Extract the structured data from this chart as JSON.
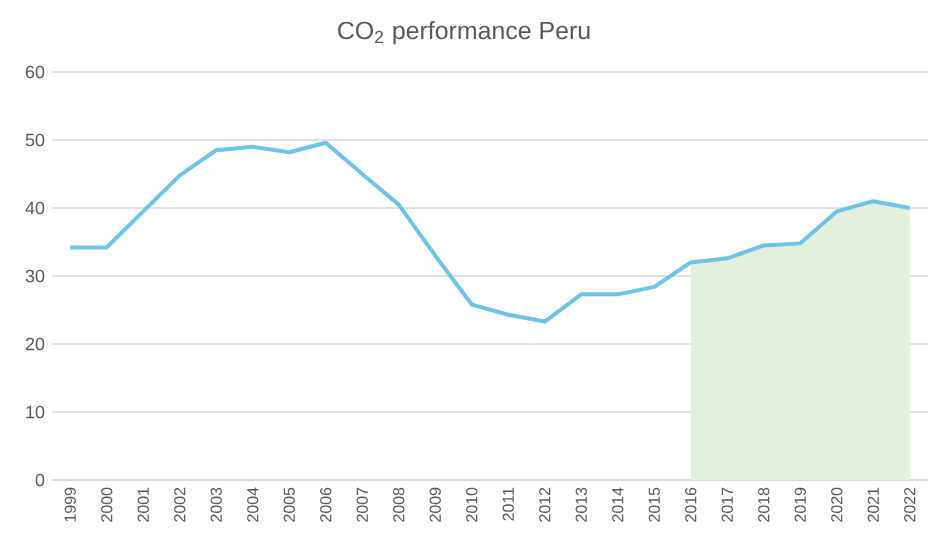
{
  "chart_data": {
    "type": "line",
    "title": "CO$_{2}$ performance Peru",
    "categories": [
      "1999",
      "2000",
      "2001",
      "2002",
      "2003",
      "2004",
      "2005",
      "2006",
      "2007",
      "2008",
      "2009",
      "2010",
      "2011",
      "2012",
      "2013",
      "2014",
      "2015",
      "2016",
      "2017",
      "2018",
      "2019",
      "2020",
      "2021",
      "2022"
    ],
    "series": [
      {
        "type": "area",
        "color": "#e2efda",
        "values": [
          null,
          null,
          null,
          null,
          null,
          null,
          null,
          null,
          null,
          null,
          null,
          null,
          null,
          null,
          null,
          null,
          null,
          32.0,
          32.6,
          34.5,
          34.8,
          39.5,
          41.0,
          40.0
        ]
      },
      {
        "color": "#6ec3e8",
        "values": [
          34.2,
          34.2,
          39.5,
          44.8,
          48.5,
          49.0,
          48.2,
          49.6,
          45.0,
          40.5,
          33.0,
          25.8,
          24.3,
          23.3,
          27.3,
          27.3,
          28.4,
          32.0,
          32.6,
          34.5,
          34.8,
          39.5,
          41.0,
          40.0
        ]
      }
    ],
    "ylim": [
      0,
      60
    ],
    "yticks": [
      0,
      10,
      20,
      30,
      40,
      50,
      60
    ],
    "grid": "y",
    "marker": "none",
    "line_style": "solid"
  }
}
